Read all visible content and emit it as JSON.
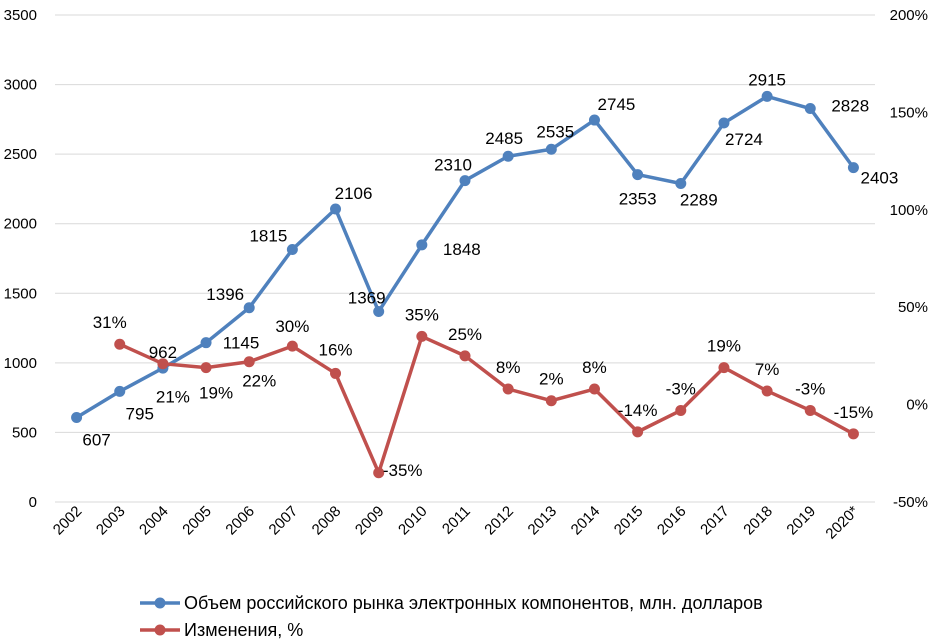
{
  "chart_data": {
    "type": "line",
    "title": "",
    "xlabel": "",
    "ylabel": "",
    "x": [
      "2002",
      "2003",
      "2004",
      "2005",
      "2006",
      "2007",
      "2008",
      "2009",
      "2010",
      "2011",
      "2012",
      "2013",
      "2014",
      "2015",
      "2016",
      "2017",
      "2018",
      "2019",
      "2020*"
    ],
    "ylim": [
      0,
      3500
    ],
    "y2lim": [
      -0.5,
      2.0
    ],
    "y_ticks": [
      "0",
      "500",
      "1000",
      "1500",
      "2000",
      "2500",
      "3000",
      "3500"
    ],
    "y2_ticks": [
      "-50%",
      "0%",
      "50%",
      "100%",
      "150%",
      "200%"
    ],
    "grid": true,
    "legend_position": "bottom",
    "series": [
      {
        "name": "Объем российского рынка электронных компонентов, млн. долларов",
        "axis": "left",
        "color": "#4f81bd",
        "values": [
          607,
          795,
          962,
          1145,
          1396,
          1815,
          2106,
          1369,
          1848,
          2310,
          2485,
          2535,
          2745,
          2353,
          2289,
          2724,
          2915,
          2828,
          2403
        ],
        "labels": [
          "607",
          "795",
          "962",
          "1145",
          "1396",
          "1815",
          "2106",
          "1369",
          "1848",
          "2310",
          "2485",
          "2535",
          "2745",
          "2353",
          "2289",
          "2724",
          "2915",
          "2828",
          "2403"
        ]
      },
      {
        "name": "Изменения, %",
        "axis": "right",
        "color": "#c0504d",
        "values": [
          null,
          0.31,
          0.21,
          0.19,
          0.22,
          0.3,
          0.16,
          -0.35,
          0.35,
          0.25,
          0.08,
          0.02,
          0.08,
          -0.14,
          -0.03,
          0.19,
          0.07,
          -0.03,
          -0.15
        ],
        "labels": [
          "",
          "31%",
          "21%",
          "19%",
          "22%",
          "30%",
          "16%",
          "-35%",
          "35%",
          "25%",
          "8%",
          "2%",
          "8%",
          "-14%",
          "-3%",
          "19%",
          "7%",
          "-3%",
          "-15%"
        ]
      }
    ]
  }
}
